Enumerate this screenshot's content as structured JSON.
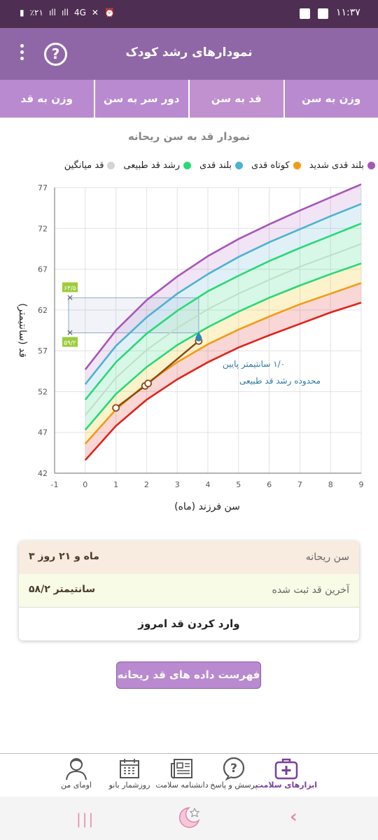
{
  "status": {
    "time": "۱۱:۳۷",
    "battery": "٪۲۱",
    "network": "4G"
  },
  "appbar": {
    "title": "نمودارهای رشد کودک",
    "help_label": "?"
  },
  "tabs": [
    {
      "label": "وزن به سن",
      "active": false
    },
    {
      "label": "قد به سن",
      "active": true
    },
    {
      "label": "دور سر به سن",
      "active": false
    },
    {
      "label": "وزن به قد",
      "active": false
    }
  ],
  "chart_title": "نمودار قد به سن ریحانه",
  "legend": [
    {
      "label": "بلند قدی شدید",
      "color": "#a855b9"
    },
    {
      "label": "کوتاه قدی",
      "color": "#f39b16"
    },
    {
      "label": "بلند قدی",
      "color": "#4bb2d3"
    },
    {
      "label": "رشد قد طبیعی",
      "color": "#28d978"
    },
    {
      "label": "قد میانگین",
      "color": "#d4d4d4"
    }
  ],
  "chart_data": {
    "type": "line",
    "xlabel": "سن فرزند (ماه)",
    "ylabel": "قد (سانتیمتر)",
    "xlim": [
      -1,
      9
    ],
    "ylim": [
      42,
      77
    ],
    "xticks": [
      "-1",
      "0",
      "1",
      "2",
      "3",
      "4",
      "5",
      "6",
      "7",
      "8",
      "9"
    ],
    "yticks": [
      "42",
      "47",
      "52",
      "57",
      "62",
      "67",
      "72",
      "77"
    ],
    "x": [
      0,
      1,
      2,
      3,
      4,
      5,
      6,
      7,
      8,
      9
    ],
    "series": [
      {
        "key": "sd3p",
        "color": "#a855b9",
        "values": [
          54.7,
          59.5,
          63.2,
          66.1,
          68.6,
          70.7,
          72.5,
          74.2,
          75.8,
          77.4
        ]
      },
      {
        "key": "sd2p",
        "color": "#4bb2d3",
        "values": [
          52.9,
          57.6,
          61.1,
          64.0,
          66.4,
          68.5,
          70.3,
          71.9,
          73.5,
          75.0
        ]
      },
      {
        "key": "sd1p",
        "color": "#28d978",
        "values": [
          51.0,
          55.6,
          59.1,
          61.9,
          64.3,
          66.2,
          68.0,
          69.6,
          71.1,
          72.6
        ]
      },
      {
        "key": "median",
        "color": "#bfe0c8",
        "values": [
          49.1,
          53.7,
          57.1,
          59.8,
          62.1,
          64.0,
          65.7,
          67.3,
          68.7,
          70.1
        ]
      },
      {
        "key": "sd1n",
        "color": "#28d978",
        "values": [
          47.3,
          51.7,
          55.0,
          57.7,
          59.9,
          61.8,
          63.5,
          65.0,
          66.4,
          67.7
        ]
      },
      {
        "key": "sd2n",
        "color": "#f39b16",
        "values": [
          45.6,
          49.8,
          53.0,
          55.6,
          57.8,
          59.6,
          61.2,
          62.7,
          64.0,
          65.3
        ]
      },
      {
        "key": "sd3n",
        "color": "#e0231a",
        "values": [
          43.6,
          47.8,
          51.0,
          53.5,
          55.6,
          57.4,
          58.9,
          60.3,
          61.7,
          62.9
        ]
      }
    ],
    "measurements": {
      "x": [
        1.0,
        1.95,
        2.05,
        3.7
      ],
      "y": [
        50.0,
        52.7,
        53.0,
        58.2
      ],
      "color": "#8b4a14"
    },
    "normal_range_markers": {
      "x": 3.7,
      "low": 59.2,
      "high": 63.5,
      "low_label": "۵۹/۲",
      "high_label": "۶۳/۵"
    },
    "annotation": {
      "line1": "۱/۰ سانتیمتر پایین",
      "line2": "محدوده رشد قد طبیعی"
    }
  },
  "info": {
    "age_label": "سن ریحانه",
    "age_value": "۳ ماه و ۲۱ روز",
    "height_label": "آخرین قد ثبت شده",
    "height_value": "۵۸/۲ سانتیمتر",
    "enter_label": "وارد کردن قد امروز"
  },
  "list_button": "فهرست داده های قد ریحانه",
  "bottom_nav": [
    {
      "label": "ابزارهای سلامت",
      "icon": "medical-kit-icon",
      "active": true
    },
    {
      "label": "پرسش و پاسخ",
      "icon": "question-bubble-icon",
      "active": false
    },
    {
      "label": "دانشنامه سلامت",
      "icon": "newspaper-icon",
      "active": false
    },
    {
      "label": "روزشمار بانو",
      "icon": "calendar-icon",
      "active": false
    },
    {
      "label": "اومای من",
      "icon": "user-icon",
      "active": false
    }
  ]
}
